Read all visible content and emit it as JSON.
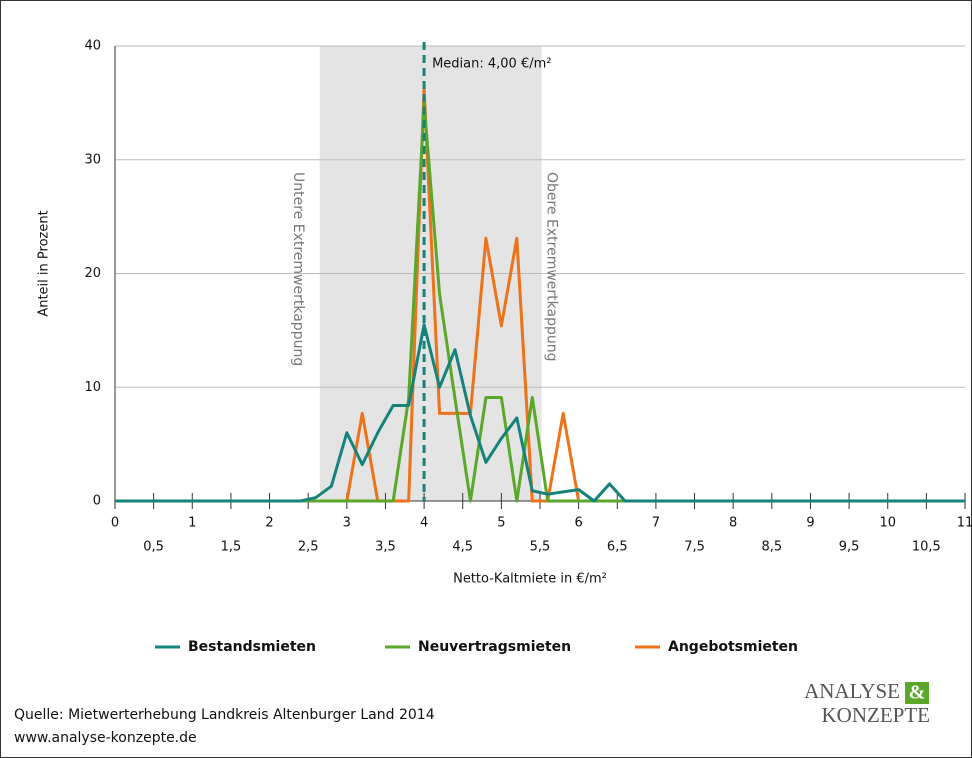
{
  "chart_data": {
    "type": "line",
    "x_label": "Netto-Kaltmiete in €/m²",
    "y_label": "Anteil in Prozent",
    "x": [
      0,
      2.4,
      2.6,
      2.8,
      3.0,
      3.2,
      3.4,
      3.6,
      3.8,
      4.0,
      4.2,
      4.4,
      4.6,
      4.8,
      5.0,
      5.2,
      5.4,
      5.6,
      5.8,
      6.0,
      6.2,
      6.4,
      6.6,
      11
    ],
    "series": [
      {
        "name": "Bestandsmieten",
        "color": "#16837a",
        "values": [
          0,
          0,
          0.3,
          1.3,
          6.0,
          3.2,
          6.0,
          8.4,
          8.4,
          15.5,
          10.0,
          13.3,
          7.5,
          3.4,
          5.5,
          7.3,
          0.9,
          0.6,
          0.8,
          1.0,
          0,
          1.5,
          0,
          0
        ]
      },
      {
        "name": "Neuvertragsmieten",
        "color": "#5aa72a",
        "values": [
          0,
          0,
          0,
          0,
          0,
          0,
          0,
          0,
          9.0,
          35.0,
          18.2,
          9.0,
          0,
          9.1,
          9.1,
          0,
          9.1,
          0,
          0,
          0,
          0,
          0,
          0,
          0
        ]
      },
      {
        "name": "Angebotsmieten",
        "color": "#ee7219",
        "values": [
          0,
          0,
          0,
          0,
          0,
          7.7,
          0,
          0,
          0,
          36.3,
          7.7,
          7.7,
          7.7,
          23.1,
          15.4,
          23.1,
          0,
          0,
          7.7,
          0,
          0,
          0,
          0,
          0
        ]
      }
    ],
    "xlim": [
      0,
      11
    ],
    "xticks": [
      0,
      {
        "value": 0.5,
        "label": "0,5"
      },
      1,
      {
        "value": 1.5,
        "label": "1,5"
      },
      2,
      {
        "value": 2.5,
        "label": "2,5"
      },
      3,
      {
        "value": 3.5,
        "label": "3,5"
      },
      4,
      {
        "value": 4.5,
        "label": "4,5"
      },
      5,
      {
        "value": 5.5,
        "label": "5,5"
      },
      6,
      {
        "value": 6.5,
        "label": "6,5"
      },
      7,
      {
        "value": 7.5,
        "label": "7,5"
      },
      8,
      {
        "value": 8.5,
        "label": "8,5"
      },
      9,
      {
        "value": 9.5,
        "label": "9,5"
      },
      10,
      {
        "value": 10.5,
        "label": "10,5"
      },
      11
    ],
    "ylim": [
      0,
      40
    ],
    "yticks": [
      0,
      10,
      20,
      30,
      40
    ],
    "grid": true,
    "band": [
      2.65,
      5.52
    ],
    "band_labels": [
      "Untere Extremwertkappung",
      "Obere Extremwertkappung"
    ],
    "median": 4,
    "median_label": "Median: 4,00 €/m²"
  },
  "source": [
    "Quelle: Mietwerterhebung Landkreis Altenburger Land 2014",
    "www.analyse-konzepte.de"
  ],
  "logo": [
    "ANALYSE",
    "&",
    "KONZEPTE"
  ]
}
